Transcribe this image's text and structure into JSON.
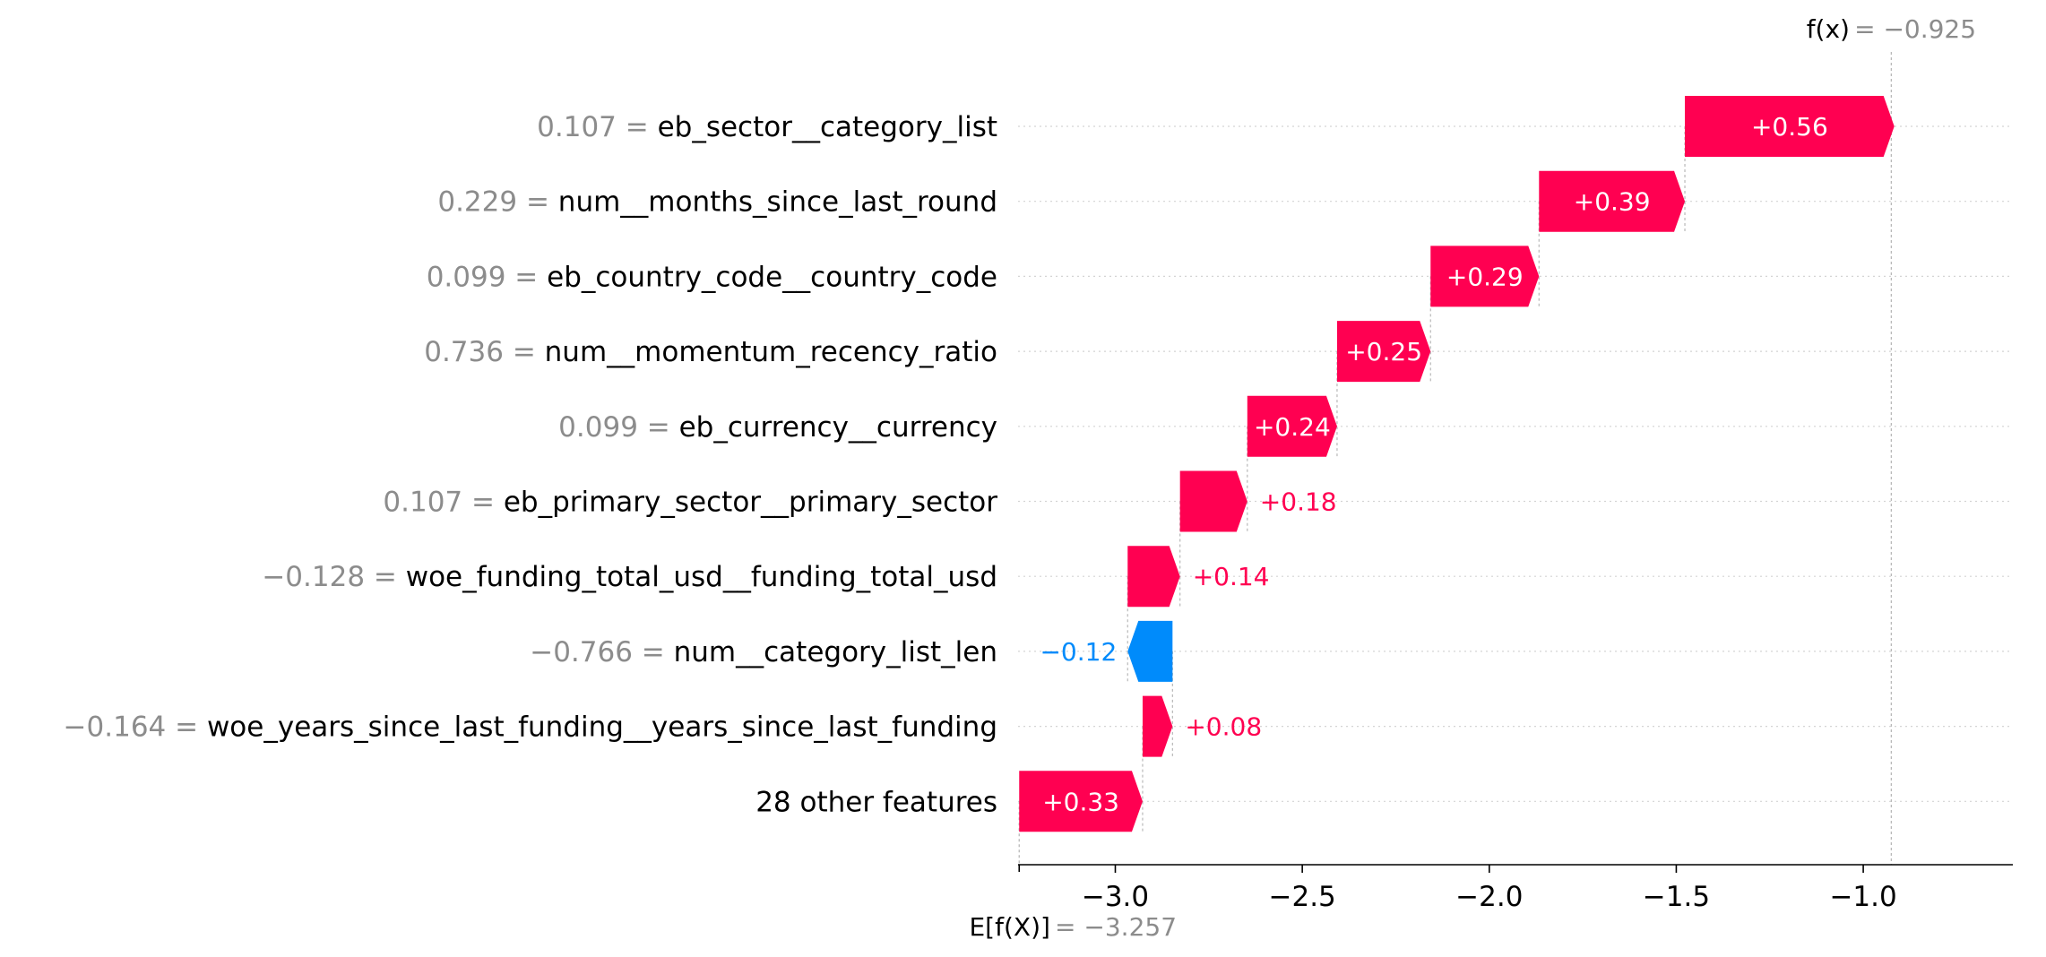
{
  "chart_data": {
    "type": "waterfall",
    "colors": {
      "positive": "#ff0051",
      "negative": "#008bfb"
    },
    "base_value": {
      "label": "E[f(X)]",
      "value": -3.257,
      "display": "−3.257"
    },
    "output_value": {
      "label": "f(x)",
      "value": -0.925,
      "display": "−0.925"
    },
    "features": [
      {
        "value": "0.107",
        "name": "eb_sector__category_list",
        "shap": 0.56,
        "label": "+0.56"
      },
      {
        "value": "0.229",
        "name": "num__months_since_last_round",
        "shap": 0.39,
        "label": "+0.39"
      },
      {
        "value": "0.099",
        "name": "eb_country_code__country_code",
        "shap": 0.29,
        "label": "+0.29"
      },
      {
        "value": "0.736",
        "name": "num__momentum_recency_ratio",
        "shap": 0.25,
        "label": "+0.25"
      },
      {
        "value": "0.099",
        "name": "eb_currency__currency",
        "shap": 0.24,
        "label": "+0.24"
      },
      {
        "value": "0.107",
        "name": "eb_primary_sector__primary_sector",
        "shap": 0.18,
        "label": "+0.18"
      },
      {
        "value": "−0.128",
        "name": "woe_funding_total_usd__funding_total_usd",
        "shap": 0.14,
        "label": "+0.14"
      },
      {
        "value": "−0.766",
        "name": "num__category_list_len",
        "shap": -0.12,
        "label": "−0.12"
      },
      {
        "value": "−0.164",
        "name": "woe_years_since_last_funding__years_since_last_funding",
        "shap": 0.08,
        "label": "+0.08"
      },
      {
        "value": "",
        "name": "28 other features",
        "shap": 0.33,
        "label": "+0.33"
      }
    ],
    "xaxis": {
      "ticks": [
        -3.0,
        -2.5,
        -2.0,
        -1.5,
        -1.0
      ],
      "tick_labels": [
        "−3.0",
        "−2.5",
        "−2.0",
        "−1.5",
        "−1.0"
      ],
      "xlim": [
        -3.26,
        -0.6
      ]
    }
  }
}
